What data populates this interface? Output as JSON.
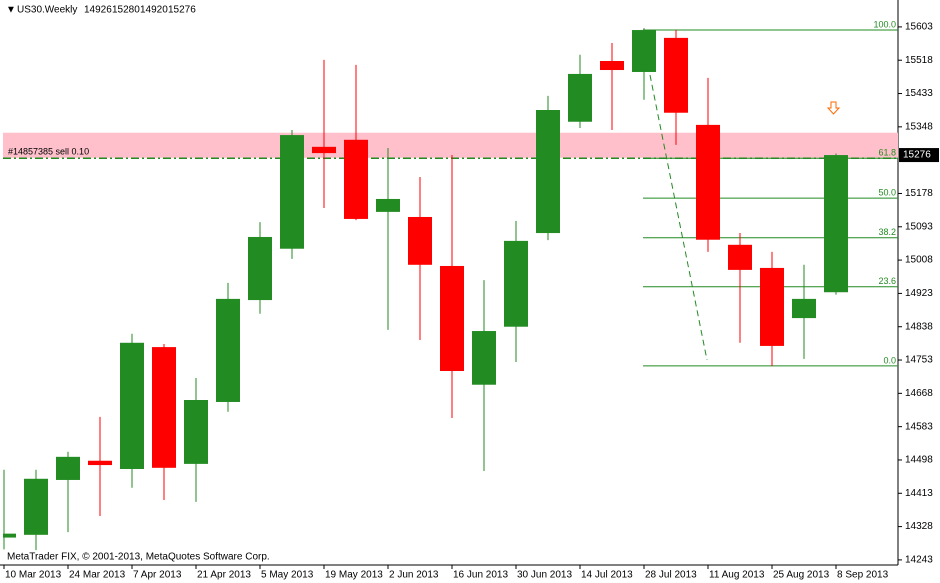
{
  "header": {
    "symbol": "US30.Weekly",
    "ohlc": [
      14926,
      15280,
      14920,
      15276
    ]
  },
  "chart_data": {
    "type": "candlestick",
    "categories": [
      "10 Mar 2013",
      null,
      "24 Mar 2013",
      null,
      "7 Apr 2013",
      null,
      "21 Apr 2013",
      null,
      "5 May 2013",
      null,
      "19 May 2013",
      null,
      "2 Jun 2013",
      null,
      "16 Jun 2013",
      null,
      "30 Jun 2013",
      null,
      "14 Jul 2013",
      null,
      "28 Jul 2013",
      null,
      "11 Aug 2013",
      null,
      "25 Aug 2013",
      null,
      "8 Sep 2013"
    ],
    "open": [
      14300,
      14307,
      14447,
      14496,
      14475,
      14786,
      14488,
      14646,
      14906,
      15037,
      15297,
      15315,
      15131,
      15118,
      14993,
      14690,
      14838,
      15077,
      15361,
      15516,
      15488,
      15575,
      15353,
      15047,
      14988,
      14860,
      14926
    ],
    "high": [
      14473,
      14473,
      14519,
      14608,
      14820,
      14794,
      14707,
      14950,
      15105,
      15340,
      15519,
      15506,
      15294,
      15220,
      15276,
      14957,
      15108,
      15427,
      15532,
      15562,
      15600,
      15595,
      15473,
      15077,
      15029,
      14996,
      15280
    ],
    "low": [
      14270,
      14268,
      14314,
      14355,
      14427,
      14396,
      14391,
      14621,
      14871,
      15011,
      15141,
      15110,
      14830,
      14804,
      14605,
      14470,
      14748,
      15059,
      15345,
      15340,
      15417,
      15302,
      15029,
      14797,
      14738,
      14756,
      14920
    ],
    "close": [
      14310,
      14450,
      14506,
      14485,
      14797,
      14478,
      14651,
      14909,
      15067,
      15327,
      15281,
      15113,
      15164,
      14996,
      14725,
      14827,
      15057,
      15391,
      15483,
      15493,
      15595,
      15384,
      15060,
      14983,
      14789,
      14909,
      15276
    ],
    "up_color": "#228b22",
    "down_color": "#ff0000",
    "ylim": [
      14230,
      15664
    ],
    "yticks": [
      14243,
      14328,
      14413,
      14498,
      14583,
      14668,
      14753,
      14838,
      14923,
      15008,
      15093,
      15178,
      15348,
      15433,
      15518,
      15603
    ],
    "last_price": 15276,
    "order_label": "#14857385 sell 0.10",
    "order_price": 15268,
    "zone": [
      15269,
      15333
    ],
    "fib_levels": [
      {
        "label": "100.0",
        "price": 15595
      },
      {
        "label": "61.8",
        "price": 15268
      },
      {
        "label": "50.0",
        "price": 15166
      },
      {
        "label": "38.2",
        "price": 15065
      },
      {
        "label": "23.6",
        "price": 14940
      },
      {
        "label": "0.0",
        "price": 14738
      }
    ],
    "copyright": "MetaTrader FIX, © 2001-2013, MetaQuotes Software Corp."
  }
}
